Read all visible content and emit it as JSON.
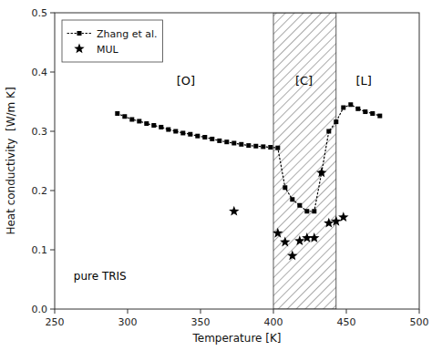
{
  "chart_data": {
    "type": "line",
    "title": "",
    "xlabel": "Temperature [K]",
    "ylabel": "Heat conductivity  [W/m K]",
    "xlim": [
      250,
      500
    ],
    "ylim": [
      0.0,
      0.5
    ],
    "xticks": [
      250,
      300,
      350,
      400,
      450,
      500
    ],
    "yticks": [
      {
        "value": 0.0,
        "label": "0.0"
      },
      0.1,
      0.2,
      0.3,
      0.4,
      0.5
    ],
    "legend": "upper left",
    "grid": false,
    "series": [
      {
        "name": "Zhang et al.",
        "type": "line",
        "line_style": "dotted",
        "marker": "square",
        "color": "#000000",
        "x": [
          293,
          298,
          303,
          308,
          313,
          318,
          323,
          328,
          333,
          338,
          343,
          348,
          353,
          358,
          363,
          368,
          373,
          378,
          383,
          388,
          393,
          398,
          403,
          408,
          413,
          418,
          423,
          428,
          433,
          438,
          443,
          448,
          453,
          458,
          463,
          468,
          473
        ],
        "values": [
          0.33,
          0.325,
          0.32,
          0.317,
          0.313,
          0.31,
          0.307,
          0.303,
          0.3,
          0.297,
          0.295,
          0.292,
          0.29,
          0.287,
          0.284,
          0.282,
          0.28,
          0.278,
          0.276,
          0.275,
          0.274,
          0.273,
          0.272,
          0.205,
          0.185,
          0.175,
          0.165,
          0.165,
          0.23,
          0.3,
          0.316,
          0.34,
          0.345,
          0.338,
          0.333,
          0.33,
          0.326
        ]
      },
      {
        "name": "MUL",
        "type": "scatter",
        "marker": "star",
        "color": "#000000",
        "x": [
          373,
          403,
          408,
          413,
          418,
          423,
          428,
          433,
          438,
          443,
          448
        ],
        "values": [
          0.165,
          0.128,
          0.113,
          0.09,
          0.115,
          0.12,
          0.12,
          0.23,
          0.145,
          0.148,
          0.155
        ]
      }
    ],
    "regions": [
      {
        "x_start": 400,
        "x_end": 443
      }
    ],
    "region_labels": [
      {
        "text": "[O]",
        "x": 340,
        "y": 0.385
      },
      {
        "text": "[C]",
        "x": 421,
        "y": 0.385
      },
      {
        "text": "[L]",
        "x": 462,
        "y": 0.385
      }
    ],
    "annotations": [
      {
        "text": "pure TRIS",
        "x": 263,
        "y": 0.05
      }
    ]
  }
}
